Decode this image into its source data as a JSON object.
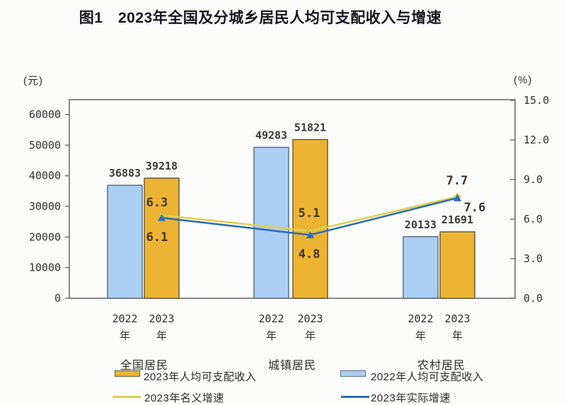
{
  "title": "图1　2023年全国及分城乡居民人均可支配收入与增速",
  "chart_data": {
    "type": "bar",
    "title": "图1　2023年全国及分城乡居民人均可支配收入与增速",
    "groups": [
      "全国居民",
      "城镇居民",
      "农村居民"
    ],
    "x_year_labels": [
      "2022",
      "2023"
    ],
    "x_year_suffix": "年",
    "left_axis": {
      "label": "(元)",
      "ticks": [
        0,
        10000,
        20000,
        30000,
        40000,
        50000,
        60000
      ],
      "range": [
        0,
        60000
      ]
    },
    "right_axis": {
      "label": "(%)",
      "ticks": [
        0.0,
        3.0,
        6.0,
        9.0,
        12.0,
        15.0
      ],
      "range": [
        0,
        15
      ]
    },
    "bar_series": [
      {
        "name": "2022年人均可支配收入",
        "color": "#ABCEF3",
        "border": "#5A7183",
        "values": [
          36883,
          49283,
          20133
        ]
      },
      {
        "name": "2023年人均可支配收入",
        "color": "#EDB434",
        "border": "#6B5D33",
        "values": [
          39218,
          51821,
          21691
        ]
      }
    ],
    "line_series": [
      {
        "name": "2023年名义增速",
        "color": "#DCD04D",
        "marker": "diamond",
        "values": [
          6.3,
          5.1,
          7.7
        ]
      },
      {
        "name": "2023年实际增速",
        "color": "#2F6EB4",
        "marker": "triangle",
        "values": [
          6.1,
          4.8,
          7.6
        ]
      }
    ],
    "legend_position": "bottom",
    "grid": false
  }
}
